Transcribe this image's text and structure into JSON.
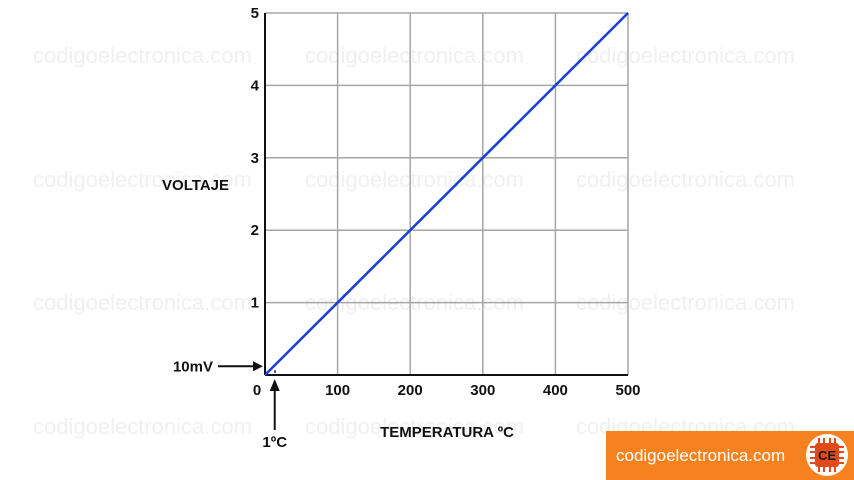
{
  "watermark": "codigoelectronica.com",
  "brand": {
    "text": "codigoelectronica.com",
    "logo_text": "CE",
    "color": "#f5821f",
    "logo_icon": "chip-icon"
  },
  "chart_data": {
    "type": "line",
    "title": "",
    "xlabel": "TEMPERATURA ºC",
    "ylabel": "VOLTAJE",
    "xlim": [
      0,
      500
    ],
    "ylim": [
      0,
      5
    ],
    "x_ticks": [
      0,
      100,
      200,
      300,
      400,
      500
    ],
    "y_ticks": [
      1,
      2,
      3,
      4,
      5
    ],
    "grid": true,
    "series": [
      {
        "x": [
          0,
          500
        ],
        "y": [
          0,
          5
        ],
        "color": "#1a3fd6"
      }
    ],
    "annotations": [
      {
        "text": "10mV",
        "points_to": {
          "x": 0,
          "y": 0.01
        }
      },
      {
        "text": "1ºC",
        "points_to": {
          "x": 1,
          "y": 0
        }
      }
    ],
    "colors": {
      "line": "#1a3fd6",
      "grid": "#a6a6a6",
      "axis": "#111111"
    }
  }
}
